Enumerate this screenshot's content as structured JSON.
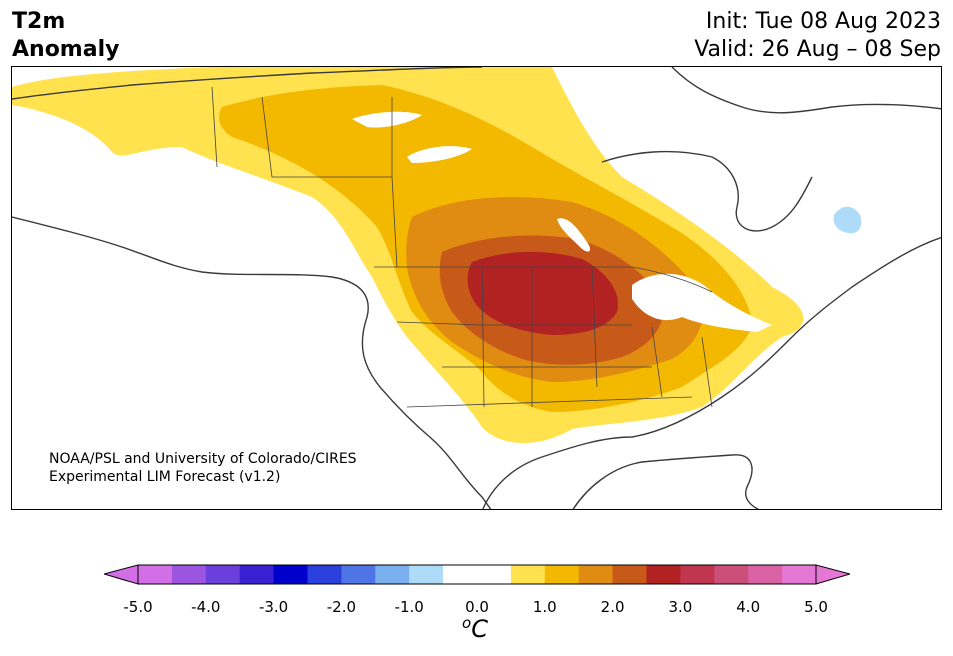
{
  "title": {
    "line1": "T2m",
    "line2": "Anomaly"
  },
  "init": "Init: Tue 08 Aug 2023",
  "valid": "Valid: 26 Aug – 08 Sep",
  "credit": {
    "line1": "NOAA/PSL and University of Colorado/CIRES",
    "line2": "Experimental LIM Forecast (v1.2)"
  },
  "colorbar": {
    "units_symbol": "o",
    "units_letter": "C",
    "tick_labels": [
      "-5.0",
      "-4.0",
      "-3.0",
      "-2.0",
      "-1.0",
      "0.0",
      "1.0",
      "2.0",
      "3.0",
      "4.0",
      "5.0"
    ],
    "bin_colors": [
      "#d36fe6",
      "#9b55e0",
      "#6b3fdb",
      "#3a20d2",
      "#0000cc",
      "#2a3fdc",
      "#4f74e5",
      "#7bb0f0",
      "#aedcf8",
      "#ffffff",
      "#ffffff",
      "#ffe24d",
      "#f3b800",
      "#e08b12",
      "#c75a18",
      "#b22222",
      "#c0364f",
      "#cc4f7a",
      "#d862a4",
      "#e577d5"
    ],
    "extend_low_color": "#d36fe6",
    "extend_high_color": "#e577d5"
  },
  "legend_levels": {
    "light_yellow": "#ffe24d",
    "yellow": "#f3b800",
    "orange": "#e08b12",
    "dark_orange": "#c75a18",
    "red": "#b22222",
    "light_blue": "#aedcf8"
  }
}
